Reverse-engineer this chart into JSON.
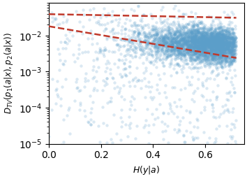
{
  "title": "",
  "xlabel": "$H(y|a)$",
  "ylabel": "$D_{TV}(p_1(a|x), p_2(a|x))$",
  "xlim": [
    0.0,
    0.75
  ],
  "ylim_log": [
    1e-05,
    0.08
  ],
  "xticks": [
    0.0,
    0.2,
    0.4,
    0.6
  ],
  "yticks": [
    1e-05,
    0.0001,
    0.001,
    0.01
  ],
  "scatter_color": "#5b9ec9",
  "scatter_alpha": 0.22,
  "scatter_size": 10,
  "dashed_line_color": "#c0392b",
  "seed": 42,
  "n_dense": 4000,
  "n_sparse": 800,
  "figsize": [
    3.54,
    2.56
  ],
  "dpi": 100,
  "upper_line": [
    0.032,
    0.042,
    -0.45
  ],
  "lower_line": [
    0.018,
    -2.8
  ]
}
